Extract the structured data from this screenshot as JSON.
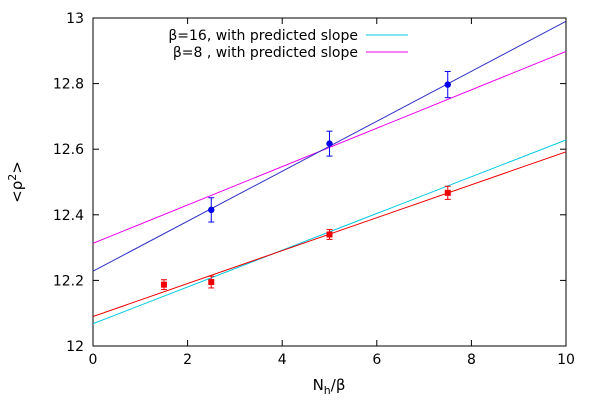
{
  "chart_data": {
    "type": "scatter",
    "xlabel_main": "N",
    "xlabel_sub": "h",
    "xlabel_tail": "/β",
    "ylabel_main": "<ρ",
    "ylabel_sup": "2",
    "ylabel_tail": ">",
    "xlim": [
      0,
      10
    ],
    "ylim": [
      12,
      13
    ],
    "x_ticks": [
      0,
      2,
      4,
      6,
      8,
      10
    ],
    "y_ticks": [
      12,
      12.2,
      12.4,
      12.6,
      12.8,
      13
    ],
    "x_tick_labels": [
      "0",
      "2",
      "4",
      "6",
      "8",
      "10"
    ],
    "y_tick_labels": [
      "12",
      "12.2",
      "12.4",
      "12.6",
      "12.8",
      "13"
    ],
    "legend_placement": "top",
    "legend": [
      {
        "label": "β=16, with predicted slope",
        "color": "#00c8e0"
      },
      {
        "label": "β=8 , with predicted slope",
        "color": "#ee00ee"
      }
    ],
    "series": [
      {
        "marker": "circle",
        "color": "#0000ee",
        "points": [
          {
            "x": 2.5,
            "y": 12.415,
            "err": 0.037
          },
          {
            "x": 5.0,
            "y": 12.617,
            "err": 0.038
          },
          {
            "x": 7.5,
            "y": 12.797,
            "err": 0.04
          }
        ],
        "fit_line": {
          "color": "#3030c8",
          "x": [
            0,
            10
          ],
          "y": [
            12.228,
            12.99
          ]
        }
      },
      {
        "marker": "square",
        "color": "#ee0000",
        "points": [
          {
            "x": 1.5,
            "y": 12.187,
            "err": 0.015
          },
          {
            "x": 2.5,
            "y": 12.195,
            "err": 0.018
          },
          {
            "x": 5.0,
            "y": 12.34,
            "err": 0.015
          },
          {
            "x": 7.5,
            "y": 12.467,
            "err": 0.02
          }
        ],
        "fit_line": {
          "color": "#ee0000",
          "x": [
            0,
            10
          ],
          "y": [
            12.09,
            12.592
          ]
        }
      }
    ],
    "predicted_lines": [
      {
        "legend_index": 0,
        "color": "#00c8e0",
        "x": [
          0,
          10
        ],
        "y": [
          12.068,
          12.628
        ]
      },
      {
        "legend_index": 1,
        "color": "#ee00ee",
        "x": [
          0,
          10
        ],
        "y": [
          12.313,
          12.898
        ]
      }
    ]
  }
}
